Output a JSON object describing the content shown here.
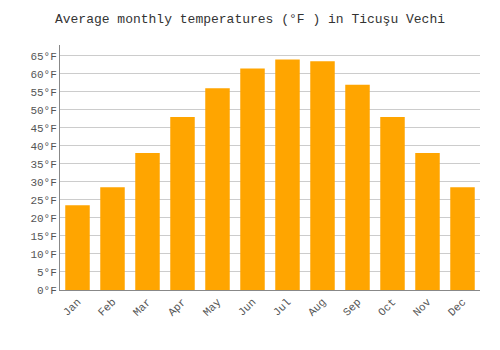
{
  "chart_data": {
    "type": "bar",
    "title": "Average monthly temperatures (°F ) in Ticuşu Vechi",
    "categories": [
      "Jan",
      "Feb",
      "Mar",
      "Apr",
      "May",
      "Jun",
      "Jul",
      "Aug",
      "Sep",
      "Oct",
      "Nov",
      "Dec"
    ],
    "values": [
      23.5,
      28.5,
      38,
      48,
      56,
      61.5,
      64,
      63.5,
      57,
      48,
      38,
      28.5
    ],
    "color": "#FFA500",
    "ylim": [
      0,
      68
    ],
    "yticks": [
      {
        "value": 0,
        "label": "0°F"
      },
      {
        "value": 5,
        "label": "5°F"
      },
      {
        "value": 10,
        "label": "10°F"
      },
      {
        "value": 15,
        "label": "15°F"
      },
      {
        "value": 20,
        "label": "20°F"
      },
      {
        "value": 25,
        "label": "25°F"
      },
      {
        "value": 30,
        "label": "30°F"
      },
      {
        "value": 35,
        "label": "35°F"
      },
      {
        "value": 40,
        "label": "40°F"
      },
      {
        "value": 45,
        "label": "45°F"
      },
      {
        "value": 50,
        "label": "50°F"
      },
      {
        "value": 55,
        "label": "55°F"
      },
      {
        "value": 60,
        "label": "60°F"
      },
      {
        "value": 65,
        "label": "65°F"
      }
    ],
    "grid": true
  }
}
